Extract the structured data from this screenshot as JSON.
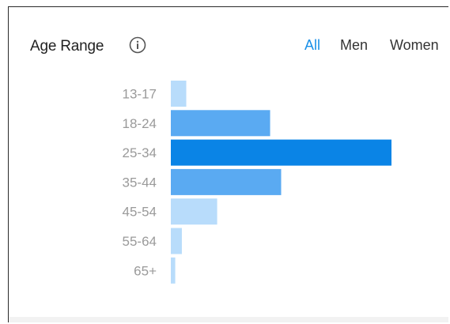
{
  "widget": {
    "title": "Age Range",
    "info_icon": "info-circle-icon",
    "tabs": [
      {
        "label": "All",
        "active": true
      },
      {
        "label": "Men",
        "active": false
      },
      {
        "label": "Women",
        "active": false
      }
    ]
  },
  "colors": {
    "highlight_bar": "#0a84e6",
    "strong_bar": "#5aaaf2",
    "light_bar": "#b8dcfb",
    "accent": "#1a90e8"
  },
  "chart_data": {
    "type": "bar",
    "orientation": "horizontal",
    "categories": [
      "13-17",
      "18-24",
      "25-34",
      "35-44",
      "45-54",
      "55-64",
      "65+"
    ],
    "values": [
      7,
      45,
      100,
      50,
      21,
      5,
      2
    ],
    "xlim": [
      0,
      100
    ],
    "grid": false,
    "legend": "none",
    "highlighted_category": "25-34"
  }
}
